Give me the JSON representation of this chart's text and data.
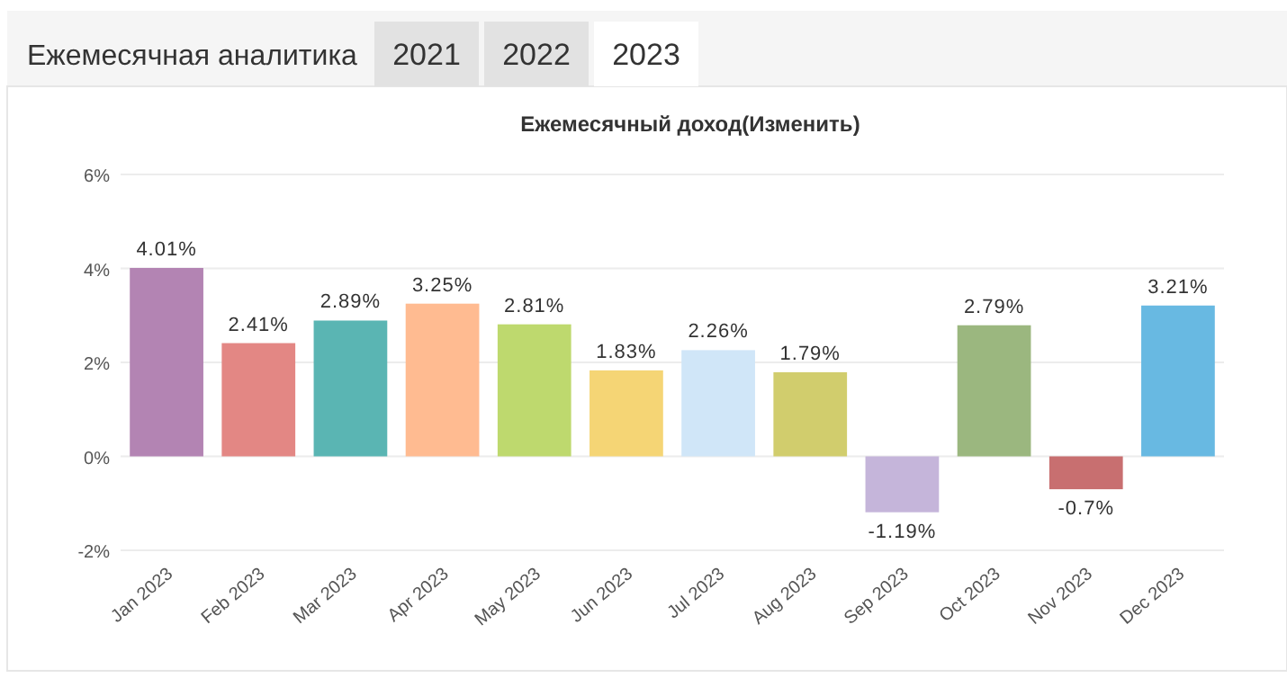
{
  "chart_data": {
    "type": "bar",
    "title": "Ежемесячный доход(Изменить)",
    "annotations": [
      "Ежемесячная аналитика",
      "2021",
      "2022",
      "2023"
    ],
    "categories": [
      "Jan 2023",
      "Feb 2023",
      "Mar 2023",
      "Apr 2023",
      "May 2023",
      "Jun 2023",
      "Jul 2023",
      "Aug 2023",
      "Sep 2023",
      "Oct 2023",
      "Nov 2023",
      "Dec 2023"
    ],
    "values": [
      4.01,
      2.41,
      2.89,
      3.25,
      2.81,
      1.83,
      2.26,
      1.79,
      -1.19,
      2.79,
      -0.7,
      3.21
    ],
    "value_labels": [
      "4.01%",
      "2.41%",
      "2.89%",
      "3.25%",
      "2.81%",
      "1.83%",
      "2.26%",
      "1.79%",
      "-1.19%",
      "2.79%",
      "-0.7%",
      "3.21%"
    ],
    "colors": [
      "#b384b3",
      "#e38784",
      "#5ab5b3",
      "#ffbb91",
      "#bed96e",
      "#f5d575",
      "#d0e6f8",
      "#d1cd6d",
      "#c5b5da",
      "#9bb77f",
      "#c86f70",
      "#68b9e2"
    ],
    "ylim": [
      -2,
      6
    ],
    "yticks": [
      {
        "value": -2,
        "label": "-2%"
      },
      {
        "value": 0,
        "label": "0%"
      },
      {
        "value": 2,
        "label": "2%"
      },
      {
        "value": 4,
        "label": "4%"
      },
      {
        "value": 6,
        "label": "6%"
      }
    ],
    "grid": "y"
  }
}
